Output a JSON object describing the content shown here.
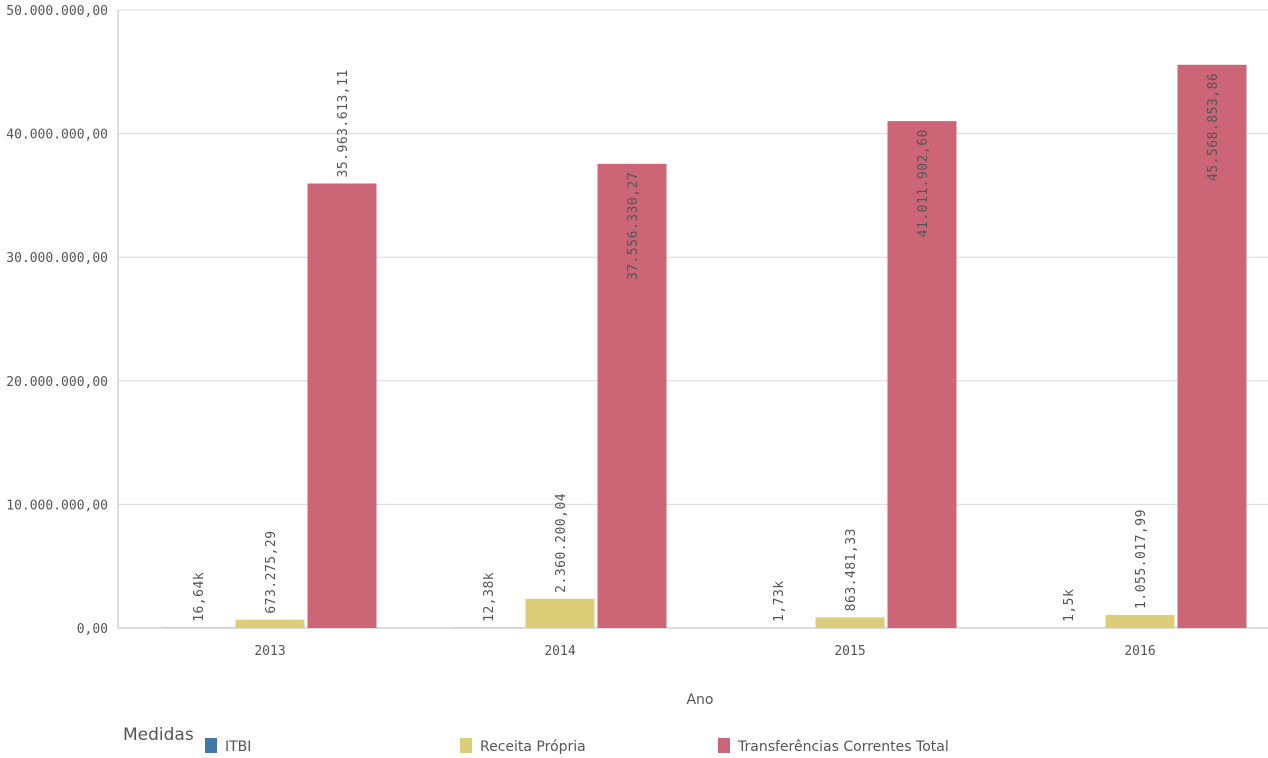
{
  "chart_data": {
    "type": "bar",
    "categories": [
      "2013",
      "2014",
      "2015",
      "2016"
    ],
    "series": [
      {
        "name": "ITBI",
        "color": "#4477aa",
        "values": [
          16640,
          12380,
          1730,
          1500
        ],
        "labels": [
          "16,64k",
          "12,38k",
          "1,73k",
          "1,5k"
        ]
      },
      {
        "name": "Receita Própria",
        "color": "#dccd79",
        "values": [
          673275.29,
          2360200.04,
          863481.33,
          1055017.99
        ],
        "labels": [
          "673.275,29",
          "2.360.200,04",
          "863.481,33",
          "1.055.017,99"
        ]
      },
      {
        "name": "Transferências Correntes Total",
        "color": "#cc6677",
        "values": [
          35963613.11,
          37556330.27,
          41011902.6,
          45568853.86
        ],
        "labels": [
          "35.963.613,11",
          "37.556.330,27",
          "41.011.902,60",
          "45.568.853,86"
        ]
      }
    ],
    "xlabel": "Ano",
    "ylabel": "",
    "ylim": [
      0,
      50000000
    ],
    "yticks": [
      {
        "value": 0,
        "label": "0,00"
      },
      {
        "value": 10000000,
        "label": "10.000.000,00"
      },
      {
        "value": 20000000,
        "label": "20.000.000,00"
      },
      {
        "value": 30000000,
        "label": "30.000.000,00"
      },
      {
        "value": 40000000,
        "label": "40.000.000,00"
      },
      {
        "value": 50000000,
        "label": "50.000.000,00"
      }
    ],
    "grid": true,
    "legend_title": "Medidas",
    "legend_position": "bottom-left"
  }
}
